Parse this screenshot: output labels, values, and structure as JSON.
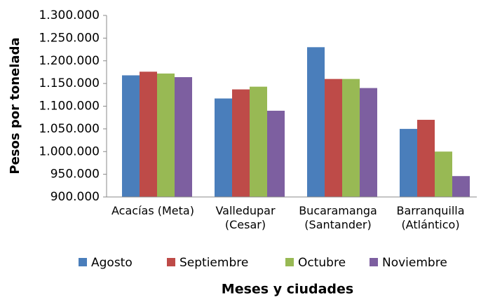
{
  "chart_data": {
    "type": "bar",
    "x_label": "Meses y ciudades",
    "y_label": "Pesos por tonelada",
    "categories": [
      "Acacías (Meta)",
      "Valledupar (Cesar)",
      "Bucaramanga (Santander)",
      "Barranquilla (Atlántico)"
    ],
    "series": [
      {
        "name": "Agosto",
        "color": "#4a7ebb",
        "values": [
          1168000,
          1117000,
          1230000,
          1050000
        ]
      },
      {
        "name": "Septiembre",
        "color": "#be4b48",
        "values": [
          1176000,
          1137000,
          1160000,
          1070000
        ]
      },
      {
        "name": "Octubre",
        "color": "#98b954",
        "values": [
          1172000,
          1143000,
          1160000,
          1000000
        ]
      },
      {
        "name": "Noviembre",
        "color": "#7d5fa0",
        "values": [
          1164000,
          1090000,
          1140000,
          946000
        ]
      }
    ],
    "ylim": [
      900000,
      1300000
    ],
    "yticks": [
      {
        "value": 900000,
        "label": "900.000"
      },
      {
        "value": 950000,
        "label": "950.000"
      },
      {
        "value": 1000000,
        "label": "1.000.000"
      },
      {
        "value": 1050000,
        "label": "1.050.000"
      },
      {
        "value": 1100000,
        "label": "1.100.000"
      },
      {
        "value": 1150000,
        "label": "1.150.000"
      },
      {
        "value": 1200000,
        "label": "1.200.000"
      },
      {
        "value": 1250000,
        "label": "1.250.000"
      },
      {
        "value": 1300000,
        "label": "1.300.000"
      }
    ],
    "legend": "bottom",
    "grid": false
  }
}
